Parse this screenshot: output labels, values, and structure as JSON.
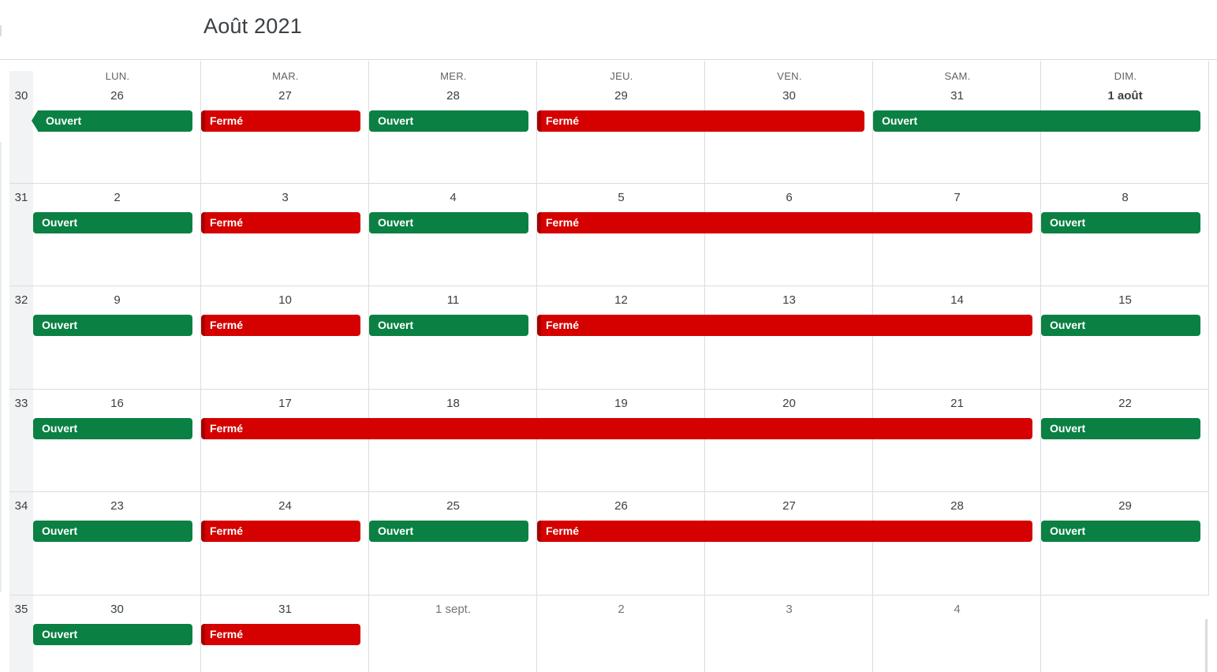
{
  "header": {
    "title": "Août 2021"
  },
  "colors": {
    "ouvert": "#0b8043",
    "ferme": "#d50000",
    "grid": "#dadce0"
  },
  "day_headers": [
    "LUN.",
    "MAR.",
    "MER.",
    "JEU.",
    "VEN.",
    "SAM.",
    "DIM."
  ],
  "weeks": [
    {
      "number": "30",
      "days": [
        {
          "label": "26",
          "style": "cur"
        },
        {
          "label": "27",
          "style": "cur"
        },
        {
          "label": "28",
          "style": "cur"
        },
        {
          "label": "29",
          "style": "cur"
        },
        {
          "label": "30",
          "style": "cur"
        },
        {
          "label": "31",
          "style": "cur"
        },
        {
          "label": "1 août",
          "style": "first"
        }
      ],
      "events": [
        {
          "label": "Ouvert",
          "type": "ouvert",
          "start": 0,
          "span": 1,
          "continues_left": true
        },
        {
          "label": "Fermé",
          "type": "ferme",
          "start": 1,
          "span": 1
        },
        {
          "label": "Ouvert",
          "type": "ouvert",
          "start": 2,
          "span": 1
        },
        {
          "label": "Fermé",
          "type": "ferme",
          "start": 3,
          "span": 2
        },
        {
          "label": "Ouvert",
          "type": "ouvert",
          "start": 5,
          "span": 2
        }
      ]
    },
    {
      "number": "31",
      "days": [
        {
          "label": "2",
          "style": "cur"
        },
        {
          "label": "3",
          "style": "cur"
        },
        {
          "label": "4",
          "style": "cur"
        },
        {
          "label": "5",
          "style": "cur"
        },
        {
          "label": "6",
          "style": "cur"
        },
        {
          "label": "7",
          "style": "cur"
        },
        {
          "label": "8",
          "style": "cur"
        }
      ],
      "events": [
        {
          "label": "Ouvert",
          "type": "ouvert",
          "start": 0,
          "span": 1
        },
        {
          "label": "Fermé",
          "type": "ferme",
          "start": 1,
          "span": 1
        },
        {
          "label": "Ouvert",
          "type": "ouvert",
          "start": 2,
          "span": 1
        },
        {
          "label": "Fermé",
          "type": "ferme",
          "start": 3,
          "span": 3
        },
        {
          "label": "Ouvert",
          "type": "ouvert",
          "start": 6,
          "span": 1
        }
      ]
    },
    {
      "number": "32",
      "days": [
        {
          "label": "9",
          "style": "cur"
        },
        {
          "label": "10",
          "style": "cur"
        },
        {
          "label": "11",
          "style": "cur"
        },
        {
          "label": "12",
          "style": "cur"
        },
        {
          "label": "13",
          "style": "cur"
        },
        {
          "label": "14",
          "style": "cur"
        },
        {
          "label": "15",
          "style": "cur"
        }
      ],
      "events": [
        {
          "label": "Ouvert",
          "type": "ouvert",
          "start": 0,
          "span": 1
        },
        {
          "label": "Fermé",
          "type": "ferme",
          "start": 1,
          "span": 1
        },
        {
          "label": "Ouvert",
          "type": "ouvert",
          "start": 2,
          "span": 1
        },
        {
          "label": "Fermé",
          "type": "ferme",
          "start": 3,
          "span": 3
        },
        {
          "label": "Ouvert",
          "type": "ouvert",
          "start": 6,
          "span": 1
        }
      ]
    },
    {
      "number": "33",
      "days": [
        {
          "label": "16",
          "style": "cur"
        },
        {
          "label": "17",
          "style": "cur"
        },
        {
          "label": "18",
          "style": "cur"
        },
        {
          "label": "19",
          "style": "cur"
        },
        {
          "label": "20",
          "style": "cur"
        },
        {
          "label": "21",
          "style": "cur"
        },
        {
          "label": "22",
          "style": "cur"
        }
      ],
      "events": [
        {
          "label": "Ouvert",
          "type": "ouvert",
          "start": 0,
          "span": 1
        },
        {
          "label": "Fermé",
          "type": "ferme",
          "start": 1,
          "span": 5
        },
        {
          "label": "Ouvert",
          "type": "ouvert",
          "start": 6,
          "span": 1
        }
      ]
    },
    {
      "number": "34",
      "days": [
        {
          "label": "23",
          "style": "cur"
        },
        {
          "label": "24",
          "style": "cur"
        },
        {
          "label": "25",
          "style": "cur"
        },
        {
          "label": "26",
          "style": "cur"
        },
        {
          "label": "27",
          "style": "cur"
        },
        {
          "label": "28",
          "style": "cur"
        },
        {
          "label": "29",
          "style": "cur"
        }
      ],
      "events": [
        {
          "label": "Ouvert",
          "type": "ouvert",
          "start": 0,
          "span": 1
        },
        {
          "label": "Fermé",
          "type": "ferme",
          "start": 1,
          "span": 1
        },
        {
          "label": "Ouvert",
          "type": "ouvert",
          "start": 2,
          "span": 1
        },
        {
          "label": "Fermé",
          "type": "ferme",
          "start": 3,
          "span": 3
        },
        {
          "label": "Ouvert",
          "type": "ouvert",
          "start": 6,
          "span": 1
        }
      ]
    },
    {
      "number": "35",
      "days": [
        {
          "label": "30",
          "style": "cur"
        },
        {
          "label": "31",
          "style": "cur"
        },
        {
          "label": "1 sept.",
          "style": "other"
        },
        {
          "label": "2",
          "style": "other"
        },
        {
          "label": "3",
          "style": "other"
        },
        {
          "label": "4",
          "style": "other"
        },
        {
          "label": "",
          "style": "other"
        }
      ],
      "events": [
        {
          "label": "Ouvert",
          "type": "ouvert",
          "start": 0,
          "span": 1
        },
        {
          "label": "Fermé",
          "type": "ferme",
          "start": 1,
          "span": 1
        }
      ]
    }
  ]
}
